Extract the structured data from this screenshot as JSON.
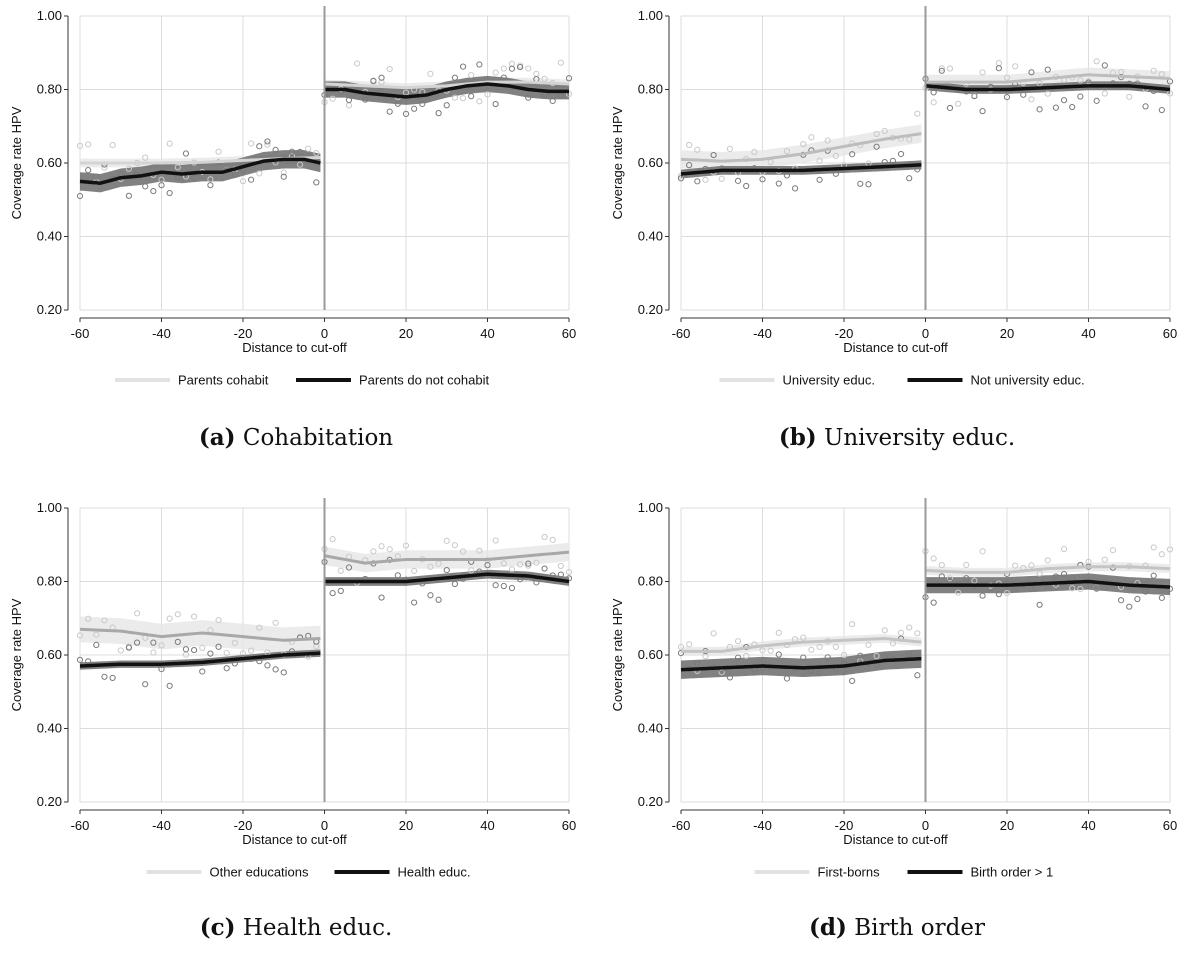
{
  "chart_data": [
    {
      "type": "scatter",
      "panel_id": "a",
      "caption_letter": "(a)",
      "caption_text": "Cohabitation",
      "xlabel": "Distance to cut-off",
      "ylabel": "Coverage rate HPV",
      "xlim": [
        -60,
        60
      ],
      "ylim": [
        0.2,
        1.0
      ],
      "xticks": [
        "-60",
        "-40",
        "-20",
        "0",
        "20",
        "40",
        "60"
      ],
      "yticks": [
        "0.20",
        "0.40",
        "0.60",
        "0.80",
        "1.00"
      ],
      "cutoff": 0,
      "grid": true,
      "legend_position": "bottom",
      "series": [
        {
          "name": "Parents cohabit",
          "color": "#d4d4d4",
          "left": {
            "x": [
              -60,
              -50,
              -40,
              -30,
              -20,
              -10,
              -1
            ],
            "y": [
              0.6,
              0.6,
              0.6,
              0.602,
              0.607,
              0.612,
              0.615
            ],
            "band": 0.012
          },
          "right": {
            "x": [
              0,
              10,
              20,
              30,
              40,
              50,
              60
            ],
            "y": [
              0.815,
              0.81,
              0.805,
              0.81,
              0.82,
              0.82,
              0.815
            ],
            "band": 0.012
          }
        },
        {
          "name": "Parents do not cohabit",
          "color": "#111111",
          "left": {
            "x": [
              -60,
              -55,
              -50,
              -45,
              -40,
              -35,
              -30,
              -25,
              -20,
              -15,
              -10,
              -5,
              -1
            ],
            "y": [
              0.55,
              0.545,
              0.56,
              0.565,
              0.575,
              0.57,
              0.575,
              0.575,
              0.59,
              0.605,
              0.61,
              0.61,
              0.6
            ],
            "band": 0.025
          },
          "right": {
            "x": [
              0,
              5,
              10,
              15,
              20,
              25,
              30,
              35,
              40,
              45,
              50,
              55,
              60
            ],
            "y": [
              0.8,
              0.8,
              0.79,
              0.785,
              0.78,
              0.785,
              0.8,
              0.81,
              0.815,
              0.81,
              0.8,
              0.795,
              0.795
            ],
            "band": 0.022
          }
        }
      ]
    },
    {
      "type": "scatter",
      "panel_id": "b",
      "caption_letter": "(b)",
      "caption_text": "University educ.",
      "xlabel": "Distance to cut-off",
      "ylabel": "Coverage rate HPV",
      "xlim": [
        -60,
        60
      ],
      "ylim": [
        0.2,
        1.0
      ],
      "xticks": [
        "-60",
        "-40",
        "-20",
        "0",
        "20",
        "40",
        "60"
      ],
      "yticks": [
        "0.20",
        "0.40",
        "0.60",
        "0.80",
        "1.00"
      ],
      "cutoff": 0,
      "grid": true,
      "legend_position": "bottom",
      "series": [
        {
          "name": "University educ.",
          "color": "#bdbdbd",
          "left": {
            "x": [
              -60,
              -50,
              -40,
              -30,
              -20,
              -10,
              -1
            ],
            "y": [
              0.61,
              0.605,
              0.61,
              0.625,
              0.645,
              0.665,
              0.68
            ],
            "band": 0.025
          },
          "right": {
            "x": [
              0,
              10,
              20,
              30,
              40,
              50,
              60
            ],
            "y": [
              0.82,
              0.82,
              0.82,
              0.83,
              0.84,
              0.835,
              0.83
            ],
            "band": 0.02
          }
        },
        {
          "name": "Not university educ.",
          "color": "#111111",
          "left": {
            "x": [
              -60,
              -50,
              -40,
              -30,
              -20,
              -10,
              -1
            ],
            "y": [
              0.57,
              0.58,
              0.58,
              0.58,
              0.585,
              0.59,
              0.595
            ],
            "band": 0.012
          },
          "right": {
            "x": [
              0,
              10,
              20,
              30,
              40,
              50,
              60
            ],
            "y": [
              0.81,
              0.8,
              0.8,
              0.805,
              0.81,
              0.81,
              0.8
            ],
            "band": 0.012
          }
        }
      ]
    },
    {
      "type": "scatter",
      "panel_id": "c",
      "caption_letter": "(c)",
      "caption_text": "Health educ.",
      "xlabel": "Distance to cut-off",
      "ylabel": "Coverage rate HPV",
      "xlim": [
        -60,
        60
      ],
      "ylim": [
        0.2,
        1.0
      ],
      "xticks": [
        "-60",
        "-40",
        "-20",
        "0",
        "20",
        "40",
        "60"
      ],
      "yticks": [
        "0.20",
        "0.40",
        "0.60",
        "0.80",
        "1.00"
      ],
      "cutoff": 0,
      "grid": true,
      "legend_position": "bottom",
      "series": [
        {
          "name": "Other educations",
          "color": "#a8a8a8",
          "left": {
            "x": [
              -60,
              -50,
              -40,
              -30,
              -20,
              -10,
              -1
            ],
            "y": [
              0.67,
              0.665,
              0.65,
              0.66,
              0.65,
              0.64,
              0.645
            ],
            "band": 0.035
          },
          "right": {
            "x": [
              0,
              10,
              20,
              30,
              40,
              50,
              60
            ],
            "y": [
              0.87,
              0.85,
              0.86,
              0.86,
              0.86,
              0.87,
              0.88
            ],
            "band": 0.025
          }
        },
        {
          "name": "Health educ.",
          "color": "#111111",
          "left": {
            "x": [
              -60,
              -50,
              -40,
              -30,
              -20,
              -10,
              -1
            ],
            "y": [
              0.57,
              0.575,
              0.575,
              0.58,
              0.59,
              0.6,
              0.605
            ],
            "band": 0.01
          },
          "right": {
            "x": [
              0,
              10,
              20,
              30,
              40,
              50,
              60
            ],
            "y": [
              0.8,
              0.8,
              0.8,
              0.81,
              0.82,
              0.815,
              0.8
            ],
            "band": 0.012
          }
        }
      ]
    },
    {
      "type": "scatter",
      "panel_id": "d",
      "caption_letter": "(d)",
      "caption_text": "Birth order",
      "xlabel": "Distance to cut-off",
      "ylabel": "Coverage rate HPV",
      "xlim": [
        -60,
        60
      ],
      "ylim": [
        0.2,
        1.0
      ],
      "xticks": [
        "-60",
        "-40",
        "-20",
        "0",
        "20",
        "40",
        "60"
      ],
      "yticks": [
        "0.20",
        "0.40",
        "0.60",
        "0.80",
        "1.00"
      ],
      "cutoff": 0,
      "grid": true,
      "legend_position": "bottom",
      "series": [
        {
          "name": "First-borns",
          "color": "#c4c4c4",
          "left": {
            "x": [
              -60,
              -50,
              -40,
              -30,
              -20,
              -10,
              -1
            ],
            "y": [
              0.61,
              0.61,
              0.625,
              0.635,
              0.64,
              0.645,
              0.635
            ],
            "band": 0.012
          },
          "right": {
            "x": [
              0,
              10,
              20,
              30,
              40,
              50,
              60
            ],
            "y": [
              0.83,
              0.825,
              0.825,
              0.835,
              0.84,
              0.84,
              0.835
            ],
            "band": 0.012
          }
        },
        {
          "name": "Birth order > 1",
          "color": "#111111",
          "left": {
            "x": [
              -60,
              -50,
              -40,
              -30,
              -20,
              -10,
              -1
            ],
            "y": [
              0.56,
              0.565,
              0.57,
              0.565,
              0.57,
              0.585,
              0.59
            ],
            "band": 0.025
          },
          "right": {
            "x": [
              0,
              10,
              20,
              30,
              40,
              50,
              60
            ],
            "y": [
              0.79,
              0.79,
              0.79,
              0.795,
              0.8,
              0.79,
              0.785
            ],
            "band": 0.022
          }
        }
      ]
    }
  ]
}
